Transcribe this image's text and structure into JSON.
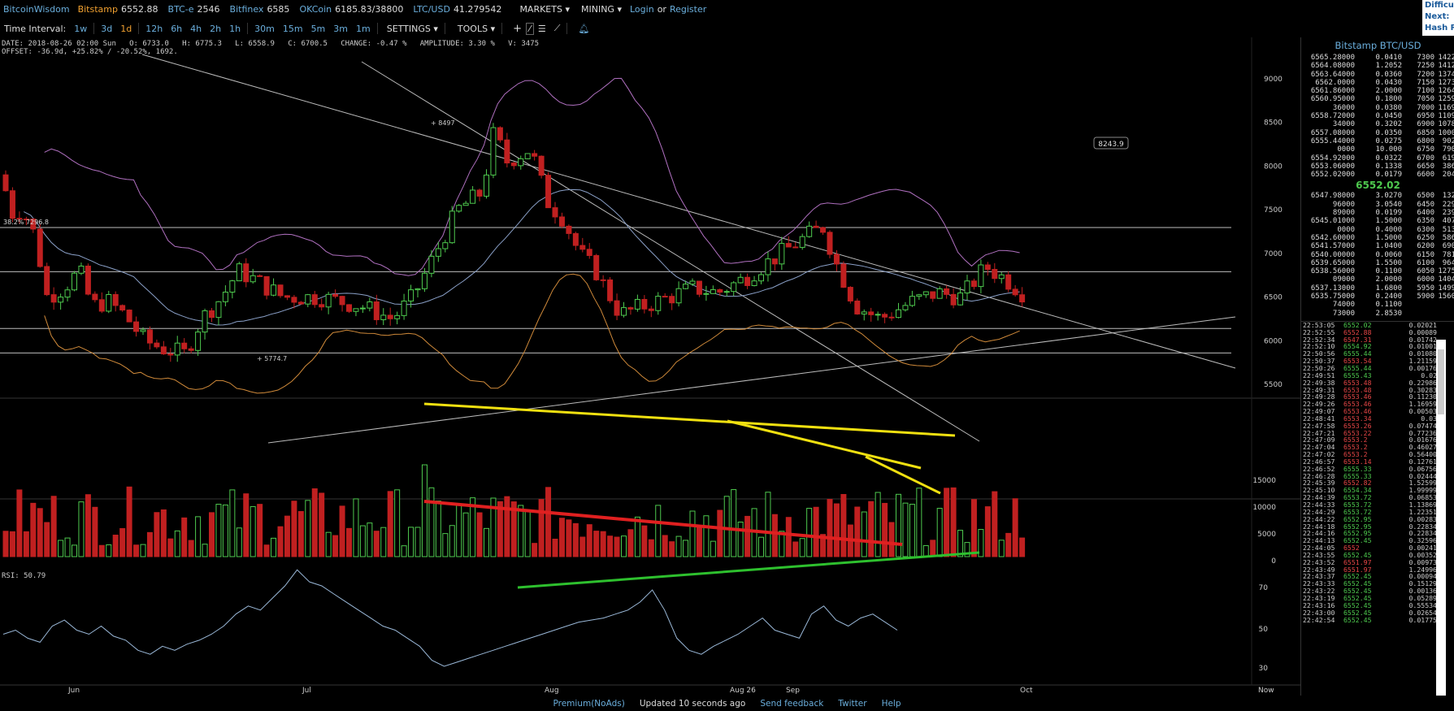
{
  "topbar": {
    "logo": "BitcoinWisdom",
    "tickers": [
      {
        "name": "Bitstamp",
        "value": "6552.88"
      },
      {
        "name": "BTC-e",
        "value": "2546"
      },
      {
        "name": "Bitfinex",
        "value": "6585"
      },
      {
        "name": "OKCoin",
        "value": "6185.83/38800"
      },
      {
        "name": "LTC/USD",
        "value": "41.279542"
      }
    ],
    "markets": "MARKETS",
    "mining": "MINING",
    "login": "Login",
    "or": "or",
    "register": "Register"
  },
  "difficulty": {
    "l1": "Difficu",
    "l2": "Next:",
    "l3": "Hash R"
  },
  "toolbar": {
    "time_interval": "Time Interval:",
    "intervals": [
      "1w",
      "3d",
      "1d",
      "12h",
      "6h",
      "4h",
      "2h",
      "1h",
      "30m",
      "15m",
      "5m",
      "3m",
      "1m"
    ],
    "settings": "SETTINGS",
    "tools": "TOOLS"
  },
  "info": {
    "line1": "DATE: 2018-08-26 02:00 Sun   O: 6733.0   H: 6775.3   L: 6558.9   C: 6700.5   CHANGE: -0.47 %   AMPLITUDE: 3.30 %   V: 3475",
    "line2": "OFFSET: -36.9d, +25.82% / -20.52%, 1692."
  },
  "annotations": {
    "high": "8497",
    "low": "5774.7",
    "fib": "38.2% 7296.8",
    "crosshair": "8243.9"
  },
  "rsi_label": "RSI: 50.79",
  "price_axis": [
    "9000",
    "8500",
    "8000",
    "7500",
    "7000",
    "6500",
    "6000",
    "5500"
  ],
  "volume_axis": [
    "15000",
    "10000",
    "5000",
    "0"
  ],
  "rsi_axis": [
    "70",
    "50",
    "30"
  ],
  "x_axis": [
    "Jun",
    "Jul",
    "Aug",
    "Aug 26",
    "Sep",
    "Oct",
    "Now"
  ],
  "sidebar": {
    "title": "Bitstamp BTC/USD",
    "asks": [
      [
        "6565.28000",
        "0.0410",
        "7300",
        "1422"
      ],
      [
        "6564.08000",
        "1.2052",
        "7250",
        "1412"
      ],
      [
        "6563.64000",
        "0.0360",
        "7200",
        "1374"
      ],
      [
        "6562.0000",
        "0.0430",
        "7150",
        "1273"
      ],
      [
        "6561.86000",
        "2.0000",
        "7100",
        "1264"
      ],
      [
        "6560.95000",
        "0.1800",
        "7050",
        "1259"
      ],
      [
        "36000",
        "0.0380",
        "7000",
        "1169"
      ],
      [
        "6558.72000",
        "0.0450",
        "6950",
        "1109"
      ],
      [
        "34000",
        "0.3202",
        "6900",
        "1078"
      ],
      [
        "6557.08000",
        "0.0350",
        "6850",
        "1000"
      ],
      [
        "6555.44000",
        "0.0275",
        "6800",
        "902"
      ],
      [
        "0000",
        "10.000",
        "6750",
        "790"
      ],
      [
        "6554.92000",
        "0.0322",
        "6700",
        "619"
      ],
      [
        "6553.06000",
        "0.1338",
        "6650",
        "386"
      ],
      [
        "6552.02000",
        "0.0179",
        "6600",
        "204"
      ]
    ],
    "last_price": "6552.02",
    "bids": [
      [
        "6547.98000",
        "3.0270",
        "6500",
        "132"
      ],
      [
        "96000",
        "3.0540",
        "6450",
        "229"
      ],
      [
        "89000",
        "0.0199",
        "6400",
        "239"
      ],
      [
        "6545.01000",
        "1.5000",
        "6350",
        "407"
      ],
      [
        "0000",
        "0.4000",
        "6300",
        "513"
      ],
      [
        "6542.60000",
        "1.5000",
        "6250",
        "586"
      ],
      [
        "6541.57000",
        "1.0400",
        "6200",
        "690"
      ],
      [
        "6540.00000",
        "0.0060",
        "6150",
        "781"
      ],
      [
        "6539.65000",
        "1.5500",
        "6100",
        "964"
      ],
      [
        "6538.56000",
        "0.1100",
        "6050",
        "1275"
      ],
      [
        "09000",
        "2.0000",
        "6000",
        "1404"
      ],
      [
        "6537.13000",
        "1.6800",
        "5950",
        "1499"
      ],
      [
        "6535.75000",
        "0.2400",
        "5900",
        "1560"
      ],
      [
        "74000",
        "0.1100",
        "",
        ""
      ],
      [
        "73000",
        "2.8530",
        "",
        ""
      ]
    ],
    "trades": [
      [
        "22:53:05",
        "6552.02",
        "g",
        "0.02021"
      ],
      [
        "22:52:55",
        "6552.88",
        "r",
        "0.00089"
      ],
      [
        "22:52:34",
        "6547.31",
        "r",
        "0.01742"
      ],
      [
        "22:52:10",
        "6554.92",
        "g",
        "0.01001"
      ],
      [
        "22:50:56",
        "6555.44",
        "g",
        "0.01080"
      ],
      [
        "22:50:37",
        "6553.54",
        "r",
        "1.21159"
      ],
      [
        "22:50:26",
        "6555.44",
        "g",
        "0.00176"
      ],
      [
        "22:49:51",
        "6555.43",
        "g",
        "0.02"
      ],
      [
        "22:49:38",
        "6553.48",
        "r",
        "0.22986"
      ],
      [
        "22:49:31",
        "6553.48",
        "r",
        "0.30283"
      ],
      [
        "22:49:28",
        "6553.46",
        "r",
        "0.11230"
      ],
      [
        "22:49:26",
        "6553.46",
        "r",
        "1.16959"
      ],
      [
        "22:49:07",
        "6553.46",
        "r",
        "0.00503"
      ],
      [
        "22:48:41",
        "6553.34",
        "r",
        "0.03"
      ],
      [
        "22:47:58",
        "6553.26",
        "r",
        "0.07474"
      ],
      [
        "22:47:21",
        "6553.22",
        "r",
        "0.77236"
      ],
      [
        "22:47:09",
        "6553.2",
        "r",
        "0.01676"
      ],
      [
        "22:47:04",
        "6553.2",
        "r",
        "0.46027"
      ],
      [
        "22:47:02",
        "6553.2",
        "r",
        "0.56400"
      ],
      [
        "22:46:57",
        "6553.14",
        "r",
        "0.12761"
      ],
      [
        "22:46:52",
        "6555.33",
        "g",
        "0.06756"
      ],
      [
        "22:46:28",
        "6555.33",
        "g",
        "0.02444"
      ],
      [
        "22:45:39",
        "6552.82",
        "r",
        "1.52599"
      ],
      [
        "22:45:10",
        "6554.34",
        "g",
        "1.99999"
      ],
      [
        "22:44:39",
        "6553.72",
        "g",
        "0.06853"
      ],
      [
        "22:44:33",
        "6553.72",
        "g",
        "1.13869"
      ],
      [
        "22:44:29",
        "6553.72",
        "g",
        "1.22351"
      ],
      [
        "22:44:22",
        "6552.95",
        "g",
        "0.00283"
      ],
      [
        "22:44:18",
        "6552.95",
        "g",
        "0.22834"
      ],
      [
        "22:44:16",
        "6552.95",
        "g",
        "0.22834"
      ],
      [
        "22:44:13",
        "6552.45",
        "g",
        "0.32596"
      ],
      [
        "22:44:05",
        "6552",
        "r",
        "0.00241"
      ],
      [
        "22:43:55",
        "6552.45",
        "g",
        "0.00352"
      ],
      [
        "22:43:52",
        "6551.97",
        "r",
        "0.00973"
      ],
      [
        "22:43:49",
        "6551.97",
        "r",
        "1.24996"
      ],
      [
        "22:43:37",
        "6552.45",
        "g",
        "0.00094"
      ],
      [
        "22:43:33",
        "6552.45",
        "g",
        "0.15129"
      ],
      [
        "22:43:22",
        "6552.45",
        "g",
        "0.00136"
      ],
      [
        "22:43:19",
        "6552.45",
        "g",
        "0.05289"
      ],
      [
        "22:43:16",
        "6552.45",
        "g",
        "0.55534"
      ],
      [
        "22:43:00",
        "6552.45",
        "g",
        "0.02654"
      ],
      [
        "22:42:54",
        "6552.45",
        "g",
        "0.01775"
      ]
    ]
  },
  "footer": {
    "premium": "Premium(NoAds)",
    "updated": "Updated 10 seconds ago",
    "feedback": "Send feedback",
    "twitter": "Twitter",
    "help": "Help"
  },
  "colors": {
    "up": "#4ec94e",
    "down": "#c02020",
    "link": "#6aaedc",
    "bitstamp": "#f0a030"
  },
  "chart_data": {
    "type": "candlestick",
    "price_range": [
      5500,
      9000
    ],
    "high_marker": 8497,
    "low_marker": 5774.7,
    "rsi": [
      48,
      50,
      46,
      44,
      52,
      55,
      50,
      48,
      52,
      47,
      45,
      40,
      38,
      42,
      40,
      43,
      45,
      48,
      52,
      58,
      62,
      60,
      66,
      72,
      80,
      74,
      72,
      68,
      64,
      60,
      56,
      52,
      50,
      46,
      42,
      35,
      32,
      34,
      36,
      38,
      40,
      42,
      44,
      46,
      48,
      50,
      52,
      54,
      55,
      56,
      58,
      60,
      64,
      70,
      60,
      46,
      40,
      38,
      42,
      45,
      48,
      52,
      56,
      50,
      48,
      46,
      58,
      62,
      55,
      52,
      56,
      58,
      54,
      50
    ]
  }
}
